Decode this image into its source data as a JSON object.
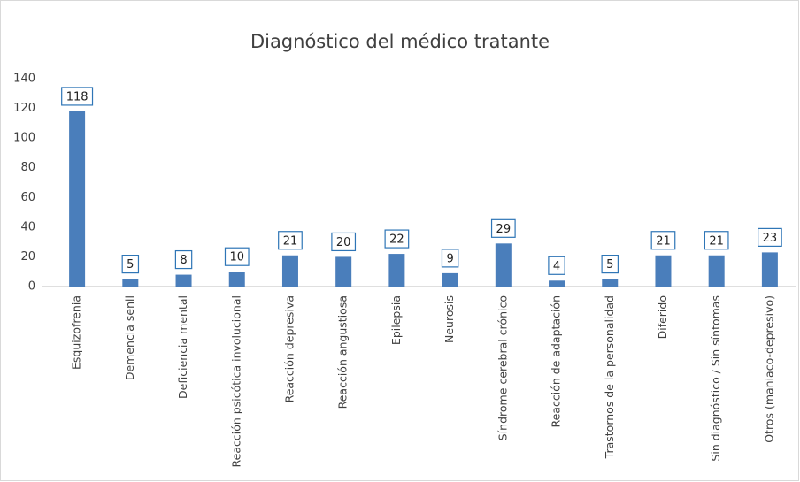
{
  "chart_data": {
    "type": "bar",
    "title": "Diagnóstico del médico tratante",
    "categories": [
      "Esquizofrenia",
      "Demencia senil",
      "Deficiencia mental",
      "Reacción psicótica involucional",
      "Reacción depresiva",
      "Reacción angustiosa",
      "Epilepsia",
      "Neurosis",
      "Síndrome cerebral crónico",
      "Reacción de adaptación",
      "Trastornos de la personalidad",
      "Diferido",
      "Sin diagnóstico / Sin síntomas",
      "Otros (maniaco-depresivo)"
    ],
    "values": [
      118,
      5,
      8,
      10,
      21,
      20,
      22,
      9,
      29,
      4,
      5,
      21,
      21,
      23
    ],
    "color": "#4a7ebb",
    "ylim": [
      0,
      140
    ],
    "yticks": [
      0,
      20,
      40,
      60,
      80,
      100,
      120,
      140
    ],
    "grid": false
  }
}
